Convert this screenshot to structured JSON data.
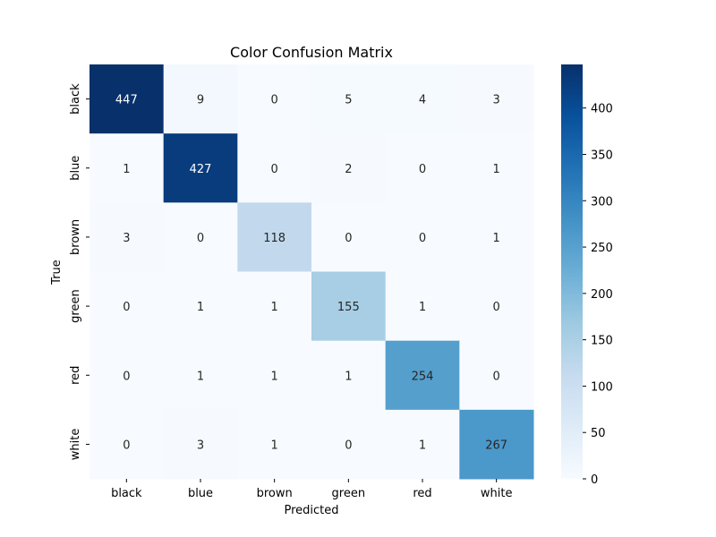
{
  "chart_data": {
    "type": "heatmap",
    "title": "Color Confusion Matrix",
    "xlabel": "Predicted",
    "ylabel": "True",
    "x_categories": [
      "black",
      "blue",
      "brown",
      "green",
      "red",
      "white"
    ],
    "y_categories": [
      "black",
      "blue",
      "brown",
      "green",
      "red",
      "white"
    ],
    "values": [
      [
        447,
        9,
        0,
        5,
        4,
        3
      ],
      [
        1,
        427,
        0,
        2,
        0,
        1
      ],
      [
        3,
        0,
        118,
        0,
        0,
        1
      ],
      [
        0,
        1,
        1,
        155,
        1,
        0
      ],
      [
        0,
        1,
        1,
        1,
        254,
        0
      ],
      [
        0,
        3,
        1,
        0,
        1,
        267
      ]
    ],
    "colormap": "Blues",
    "colorbar": {
      "min": 0,
      "max": 447,
      "ticks": [
        0,
        50,
        100,
        150,
        200,
        250,
        300,
        350,
        400
      ]
    },
    "annotations": true,
    "grid": false
  }
}
